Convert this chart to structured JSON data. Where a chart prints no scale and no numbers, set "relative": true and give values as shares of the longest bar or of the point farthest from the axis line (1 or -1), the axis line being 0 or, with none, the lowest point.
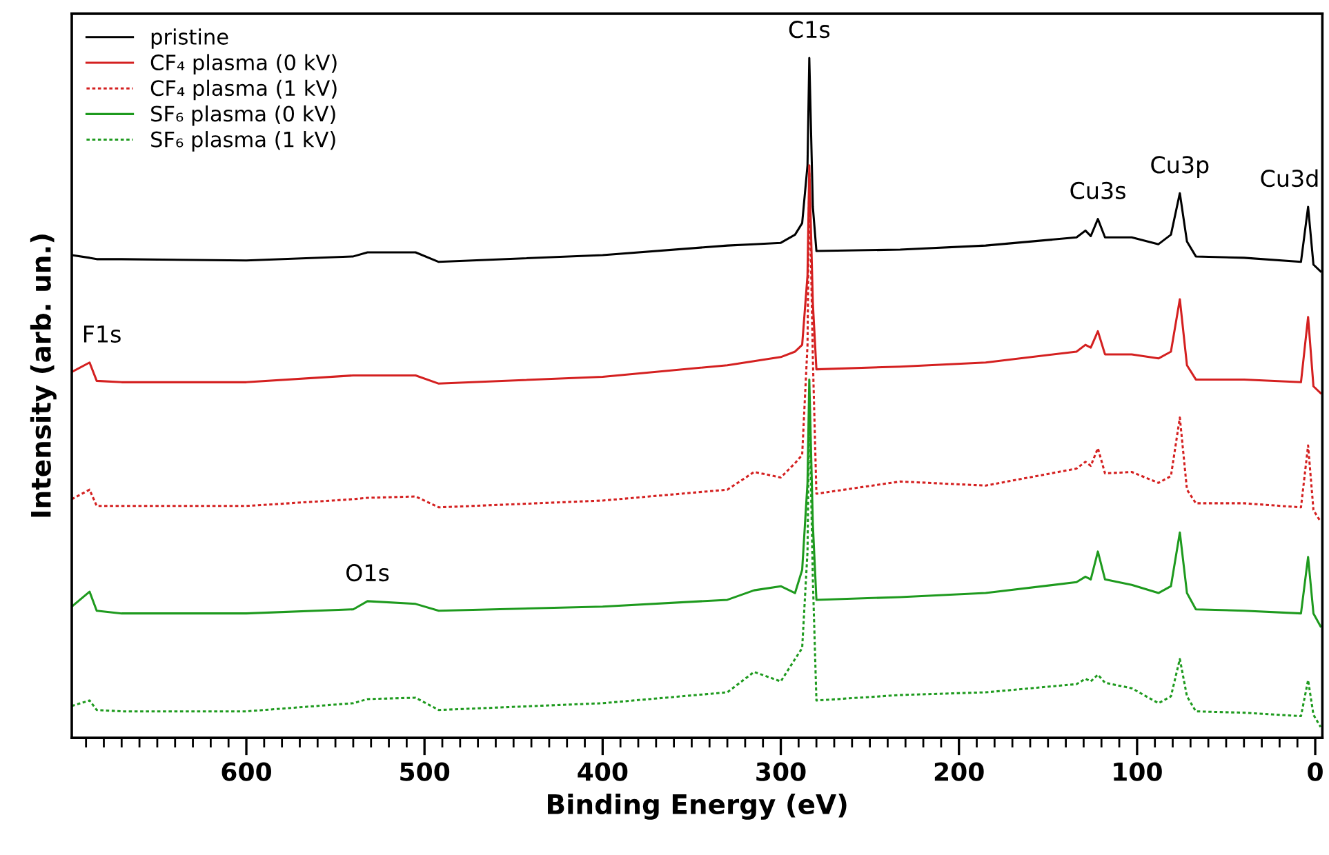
{
  "chart_data": {
    "type": "line",
    "relative": true,
    "xlabel": "Binding Energy (eV)",
    "ylabel": "Intensity (arb. un.)",
    "xlim": [
      698,
      -4
    ],
    "xticks": [
      {
        "value": 690,
        "label": null
      },
      {
        "value": 680,
        "label": null
      },
      {
        "value": 670,
        "label": null
      },
      {
        "value": 660,
        "label": null
      },
      {
        "value": 650,
        "label": null
      },
      {
        "value": 640,
        "label": null
      },
      {
        "value": 630,
        "label": null
      },
      {
        "value": 620,
        "label": null
      },
      {
        "value": 610,
        "label": null
      },
      600,
      {
        "value": 590,
        "label": null
      },
      {
        "value": 580,
        "label": null
      },
      {
        "value": 570,
        "label": null
      },
      {
        "value": 560,
        "label": null
      },
      {
        "value": 550,
        "label": null
      },
      {
        "value": 540,
        "label": null
      },
      {
        "value": 530,
        "label": null
      },
      {
        "value": 520,
        "label": null
      },
      {
        "value": 510,
        "label": null
      },
      500,
      {
        "value": 490,
        "label": null
      },
      {
        "value": 480,
        "label": null
      },
      {
        "value": 470,
        "label": null
      },
      {
        "value": 460,
        "label": null
      },
      {
        "value": 450,
        "label": null
      },
      {
        "value": 440,
        "label": null
      },
      {
        "value": 430,
        "label": null
      },
      {
        "value": 420,
        "label": null
      },
      {
        "value": 410,
        "label": null
      },
      400,
      {
        "value": 390,
        "label": null
      },
      {
        "value": 380,
        "label": null
      },
      {
        "value": 370,
        "label": null
      },
      {
        "value": 360,
        "label": null
      },
      {
        "value": 350,
        "label": null
      },
      {
        "value": 340,
        "label": null
      },
      {
        "value": 330,
        "label": null
      },
      {
        "value": 320,
        "label": null
      },
      {
        "value": 310,
        "label": null
      },
      300,
      {
        "value": 290,
        "label": null
      },
      {
        "value": 280,
        "label": null
      },
      {
        "value": 270,
        "label": null
      },
      {
        "value": 260,
        "label": null
      },
      {
        "value": 250,
        "label": null
      },
      {
        "value": 240,
        "label": null
      },
      {
        "value": 230,
        "label": null
      },
      {
        "value": 220,
        "label": null
      },
      {
        "value": 210,
        "label": null
      },
      200,
      {
        "value": 190,
        "label": null
      },
      {
        "value": 180,
        "label": null
      },
      {
        "value": 170,
        "label": null
      },
      {
        "value": 160,
        "label": null
      },
      {
        "value": 150,
        "label": null
      },
      {
        "value": 140,
        "label": null
      },
      {
        "value": 130,
        "label": null
      },
      {
        "value": 120,
        "label": null
      },
      {
        "value": 110,
        "label": null
      },
      100,
      {
        "value": 90,
        "label": null
      },
      {
        "value": 80,
        "label": null
      },
      {
        "value": 70,
        "label": null
      },
      {
        "value": 60,
        "label": null
      },
      {
        "value": 50,
        "label": null
      },
      {
        "value": 40,
        "label": null
      },
      {
        "value": 30,
        "label": null
      },
      {
        "value": 20,
        "label": null
      },
      {
        "value": 10,
        "label": null
      },
      0
    ],
    "x": [
      698,
      688,
      684,
      670,
      600,
      540,
      532,
      505,
      492,
      400,
      330,
      315,
      300,
      292,
      288,
      285,
      284,
      282,
      280,
      233,
      185,
      134,
      129,
      126,
      122,
      118,
      103,
      88,
      81,
      76,
      72,
      67,
      40,
      8,
      4,
      1,
      -3
    ],
    "series": [
      {
        "name": "pristine",
        "color": "#000000",
        "line_style": "solid",
        "values": [
          0.71,
          0.706,
          0.704,
          0.704,
          0.702,
          0.708,
          0.714,
          0.714,
          0.7,
          0.71,
          0.724,
          0.726,
          0.728,
          0.74,
          0.757,
          0.842,
          1.0,
          0.781,
          0.716,
          0.718,
          0.724,
          0.736,
          0.746,
          0.738,
          0.763,
          0.736,
          0.736,
          0.726,
          0.74,
          0.801,
          0.73,
          0.708,
          0.706,
          0.7,
          0.781,
          0.696,
          0.686
        ]
      },
      {
        "name": "CF₄ plasma (0 kV)",
        "color": "#d42020",
        "line_style": "solid",
        "values": [
          0.538,
          0.552,
          0.525,
          0.523,
          0.523,
          0.533,
          0.533,
          0.533,
          0.521,
          0.531,
          0.548,
          0.554,
          0.56,
          0.568,
          0.578,
          0.68,
          0.842,
          0.639,
          0.542,
          0.546,
          0.552,
          0.568,
          0.578,
          0.574,
          0.598,
          0.564,
          0.564,
          0.558,
          0.568,
          0.645,
          0.548,
          0.527,
          0.527,
          0.523,
          0.619,
          0.517,
          0.507
        ]
      },
      {
        "name": "CF₄ plasma (1 kV)",
        "color": "#d42020",
        "line_style": "dotted",
        "values": [
          0.351,
          0.365,
          0.341,
          0.341,
          0.341,
          0.351,
          0.353,
          0.355,
          0.339,
          0.349,
          0.365,
          0.391,
          0.383,
          0.404,
          0.416,
          0.578,
          0.832,
          0.558,
          0.359,
          0.377,
          0.371,
          0.396,
          0.406,
          0.4,
          0.426,
          0.389,
          0.391,
          0.375,
          0.385,
          0.471,
          0.365,
          0.345,
          0.345,
          0.339,
          0.43,
          0.335,
          0.318
        ]
      },
      {
        "name": "SF₆ plasma (0 kV)",
        "color": "#1e9a1e",
        "line_style": "solid",
        "values": [
          0.193,
          0.215,
          0.187,
          0.183,
          0.183,
          0.189,
          0.201,
          0.197,
          0.187,
          0.193,
          0.203,
          0.217,
          0.223,
          0.213,
          0.247,
          0.375,
          0.527,
          0.314,
          0.203,
          0.207,
          0.213,
          0.229,
          0.237,
          0.233,
          0.274,
          0.233,
          0.225,
          0.213,
          0.223,
          0.302,
          0.213,
          0.189,
          0.187,
          0.183,
          0.266,
          0.183,
          0.164
        ]
      },
      {
        "name": "SF₆ plasma (1 kV)",
        "color": "#1e9a1e",
        "line_style": "dotted",
        "values": [
          0.047,
          0.055,
          0.041,
          0.039,
          0.039,
          0.051,
          0.057,
          0.059,
          0.041,
          0.051,
          0.067,
          0.097,
          0.083,
          0.116,
          0.132,
          0.274,
          0.497,
          0.233,
          0.055,
          0.063,
          0.067,
          0.079,
          0.087,
          0.083,
          0.093,
          0.081,
          0.073,
          0.051,
          0.061,
          0.116,
          0.061,
          0.039,
          0.037,
          0.032,
          0.085,
          0.034,
          0.016
        ]
      }
    ],
    "annotations": [
      {
        "text": "C1s",
        "x": 284,
        "y": 1.0
      },
      {
        "text": "Cu3s",
        "x": 122,
        "y": 0.763
      },
      {
        "text": "Cu3p",
        "x": 76,
        "y": 0.801
      },
      {
        "text": "Cu3d",
        "x": 4,
        "y": 0.781
      },
      {
        "text": "F1s",
        "x": 688,
        "y": 0.552
      },
      {
        "text": "O1s",
        "x": 532,
        "y": 0.201
      }
    ],
    "legend": "top left",
    "grid": false,
    "tick_labels": "x",
    "marker": "none"
  }
}
